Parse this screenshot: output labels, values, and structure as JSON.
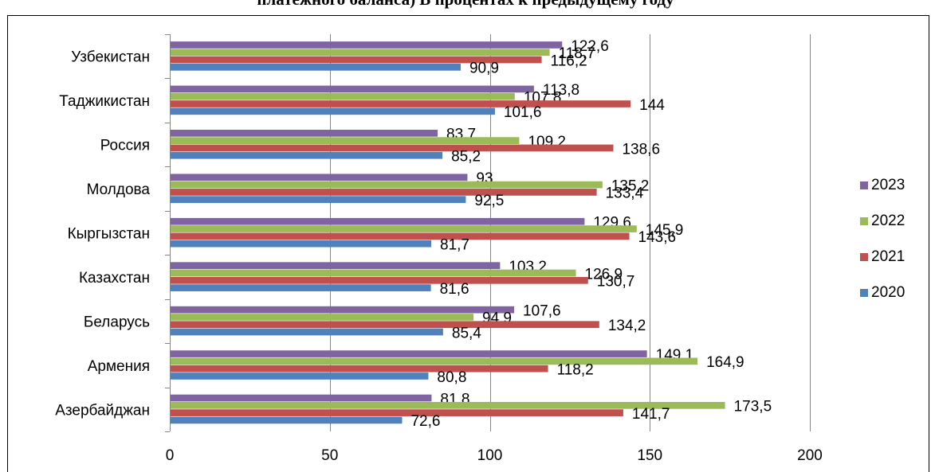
{
  "title": "платежного баланса) В процентах к предыдущему году",
  "colors": {
    "2023": "#8064A2",
    "2022": "#9BBB59",
    "2021": "#C0504D",
    "2020": "#4F81BD",
    "axis": "#868686",
    "border": "#000000"
  },
  "chart_data": {
    "type": "bar",
    "orientation": "horizontal",
    "title": "платежного баланса) В процентах к предыдущему году",
    "categories": [
      "Азербайджан",
      "Армения",
      "Беларусь",
      "Казахстан",
      "Кыргызстан",
      "Молдова",
      "Россия",
      "Таджикистан",
      "Узбекистан"
    ],
    "series": [
      {
        "name": "2020",
        "values": [
          72.6,
          80.8,
          85.4,
          81.6,
          81.7,
          92.5,
          85.2,
          101.6,
          90.9
        ],
        "labels": [
          "72,6",
          "80,8",
          "85,4",
          "81,6",
          "81,7",
          "92,5",
          "85,2",
          "101,6",
          "90,9"
        ]
      },
      {
        "name": "2021",
        "values": [
          141.7,
          118.2,
          134.2,
          130.7,
          143.6,
          133.4,
          138.6,
          144,
          116.2
        ],
        "labels": [
          "141,7",
          "118,2",
          "134,2",
          "130,7",
          "143,6",
          "133,4",
          "138,6",
          "144",
          "116,2"
        ]
      },
      {
        "name": "2022",
        "values": [
          173.5,
          164.9,
          94.9,
          126.9,
          145.9,
          135.2,
          109.2,
          107.8,
          118.7
        ],
        "labels": [
          "173,5",
          "164,9",
          "94,9",
          "126,9",
          "145,9",
          "135,2",
          "109,2",
          "107,8",
          "118,7"
        ]
      },
      {
        "name": "2023",
        "values": [
          81.8,
          149.1,
          107.6,
          103.2,
          129.6,
          93,
          83.7,
          113.8,
          122.6
        ],
        "labels": [
          "81,8",
          "149,1",
          "107,6",
          "103,2",
          "129,6",
          "93",
          "83,7",
          "113,8",
          "122,6"
        ]
      }
    ],
    "xlim": [
      0,
      200
    ],
    "xticks": [
      0,
      50,
      100,
      150,
      200
    ],
    "xtick_labels": [
      "0",
      "50",
      "100",
      "150",
      "200"
    ],
    "grid": true,
    "legend": {
      "position": "right",
      "order": [
        "2023",
        "2022",
        "2021",
        "2020"
      ]
    }
  }
}
